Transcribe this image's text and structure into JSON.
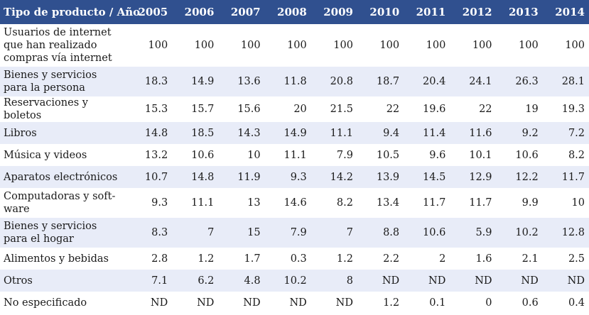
{
  "table": {
    "header_label": "Tipo de producto / Año",
    "years": [
      "2005",
      "2006",
      "2007",
      "2008",
      "2009",
      "2010",
      "2011",
      "2012",
      "2013",
      "2014"
    ],
    "rows": [
      {
        "label": "Usuarios de internet que han realizado compras vía internet",
        "values": [
          "100",
          "100",
          "100",
          "100",
          "100",
          "100",
          "100",
          "100",
          "100",
          "100"
        ]
      },
      {
        "label": "Bienes y servicios para la persona",
        "values": [
          "18.3",
          "14.9",
          "13.6",
          "11.8",
          "20.8",
          "18.7",
          "20.4",
          "24.1",
          "26.3",
          "28.1"
        ]
      },
      {
        "label": "Reservaciones y boletos",
        "values": [
          "15.3",
          "15.7",
          "15.6",
          "20",
          "21.5",
          "22",
          "19.6",
          "22",
          "19",
          "19.3"
        ]
      },
      {
        "label": "Libros",
        "values": [
          "14.8",
          "18.5",
          "14.3",
          "14.9",
          "11.1",
          "9.4",
          "11.4",
          "11.6",
          "9.2",
          "7.2"
        ]
      },
      {
        "label": "Música y videos",
        "values": [
          "13.2",
          "10.6",
          "10",
          "11.1",
          "7.9",
          "10.5",
          "9.6",
          "10.1",
          "10.6",
          "8.2"
        ]
      },
      {
        "label": "Aparatos electrónicos",
        "values": [
          "10.7",
          "14.8",
          "11.9",
          "9.3",
          "14.2",
          "13.9",
          "14.5",
          "12.9",
          "12.2",
          "11.7"
        ]
      },
      {
        "label": "Computadoras y soft-ware",
        "values": [
          "9.3",
          "11.1",
          "13",
          "14.6",
          "8.2",
          "13.4",
          "11.7",
          "11.7",
          "9.9",
          "10"
        ]
      },
      {
        "label": "Bienes y servicios para el hogar",
        "values": [
          "8.3",
          "7",
          "15",
          "7.9",
          "7",
          "8.8",
          "10.6",
          "5.9",
          "10.2",
          "12.8"
        ]
      },
      {
        "label": "Alimentos y bebidas",
        "values": [
          "2.8",
          "1.2",
          "1.7",
          "0.3",
          "1.2",
          "2.2",
          "2",
          "1.6",
          "2.1",
          "2.5"
        ]
      },
      {
        "label": "Otros",
        "values": [
          "7.1",
          "6.2",
          "4.8",
          "10.2",
          "8",
          "ND",
          "ND",
          "ND",
          "ND",
          "ND"
        ]
      },
      {
        "label": "No especificado",
        "values": [
          "ND",
          "ND",
          "ND",
          "ND",
          "ND",
          "1.2",
          "0.1",
          "0",
          "0.6",
          "0.4"
        ]
      }
    ]
  }
}
